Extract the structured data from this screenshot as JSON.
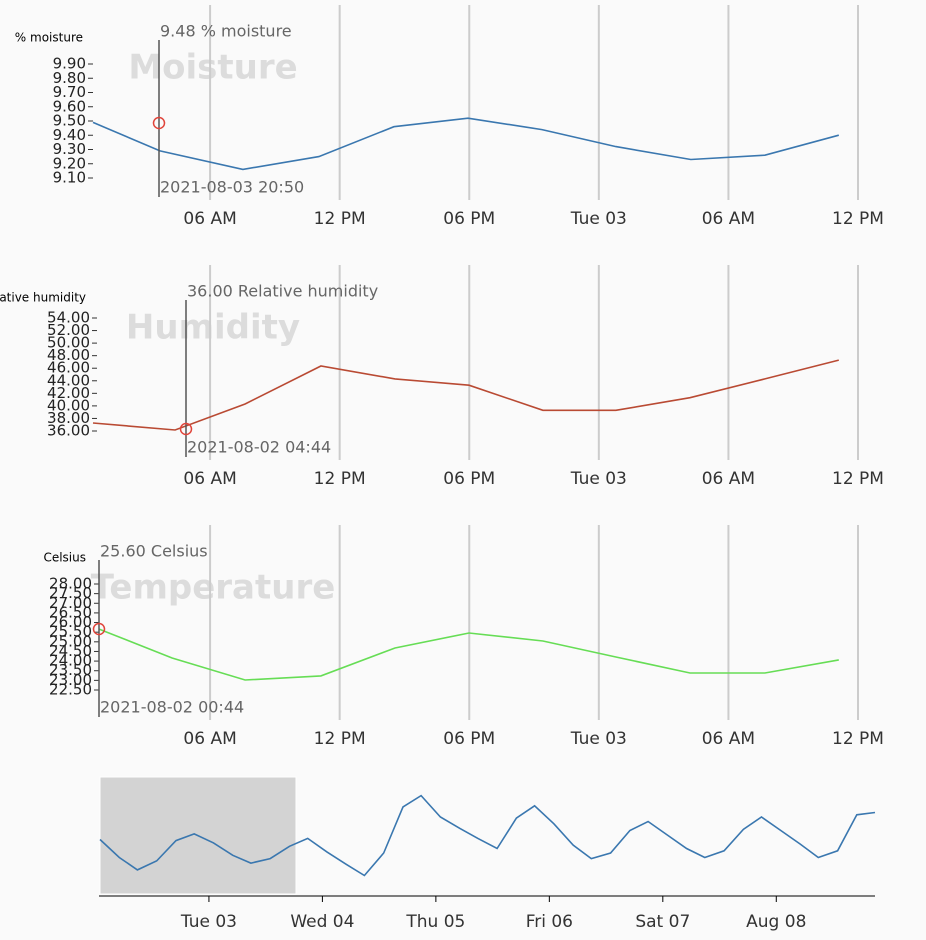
{
  "chart_data": [
    {
      "type": "line",
      "title": "Moisture",
      "y_label": "% moisture",
      "color": "#3a77af",
      "x": [
        0.58,
        3.68,
        7.52,
        11.04,
        14.51,
        17.94,
        21.37,
        24.79,
        28.26,
        31.69,
        35.11
      ],
      "values": [
        9.49,
        9.29,
        9.16,
        9.25,
        9.46,
        9.52,
        9.44,
        9.32,
        9.23,
        9.26,
        9.4
      ],
      "xlim": [
        0,
        36
      ],
      "xticks": [
        {
          "value": 6,
          "label": "06 AM"
        },
        {
          "value": 12,
          "label": "12 PM"
        },
        {
          "value": 18,
          "label": "06 PM"
        },
        {
          "value": 24,
          "label": "Tue 03"
        },
        {
          "value": 30,
          "label": "06 AM"
        },
        {
          "value": 36,
          "label": "12 PM"
        }
      ],
      "ylim": [
        9.1,
        9.9
      ],
      "yticks": [
        {
          "value": 9.1,
          "label": "9.10"
        },
        {
          "value": 9.2,
          "label": "9.20"
        },
        {
          "value": 9.3,
          "label": "9.30"
        },
        {
          "value": 9.4,
          "label": "9.40"
        },
        {
          "value": 9.5,
          "label": "9.50"
        },
        {
          "value": 9.6,
          "label": "9.60"
        },
        {
          "value": 9.7,
          "label": "9.70"
        },
        {
          "value": 9.8,
          "label": "9.80"
        },
        {
          "value": 9.9,
          "label": "9.90"
        }
      ],
      "grid": true,
      "tooltip": {
        "text": "9.48 % moisture",
        "time": "2021-08-03 20:50"
      }
    },
    {
      "type": "line",
      "title": "Humidity",
      "y_label": "Relative humidity",
      "color": "#b94a33",
      "x": [
        0.58,
        4.38,
        7.62,
        11.13,
        14.56,
        17.99,
        21.41,
        24.79,
        28.22,
        31.69,
        35.11
      ],
      "values": [
        37.27,
        36.16,
        40.3,
        46.35,
        44.3,
        43.3,
        39.3,
        39.3,
        41.3,
        44.3,
        47.3
      ],
      "xlim": [
        0,
        36
      ],
      "xticks": [
        {
          "value": 6,
          "label": "06 AM"
        },
        {
          "value": 12,
          "label": "12 PM"
        },
        {
          "value": 18,
          "label": "06 PM"
        },
        {
          "value": 24,
          "label": "Tue 03"
        },
        {
          "value": 30,
          "label": "06 AM"
        },
        {
          "value": 36,
          "label": "12 PM"
        }
      ],
      "ylim": [
        36,
        54
      ],
      "yticks": [
        {
          "value": 36,
          "label": "36.00"
        },
        {
          "value": 38,
          "label": "38.00"
        },
        {
          "value": 40,
          "label": "40.00"
        },
        {
          "value": 42,
          "label": "42.00"
        },
        {
          "value": 44,
          "label": "44.00"
        },
        {
          "value": 46,
          "label": "46.00"
        },
        {
          "value": 48,
          "label": "48.00"
        },
        {
          "value": 50,
          "label": "50.00"
        },
        {
          "value": 52,
          "label": "52.00"
        },
        {
          "value": 54,
          "label": "54.00"
        }
      ],
      "grid": true,
      "tooltip": {
        "text": "36.00 Relative humidity",
        "time": "2021-08-02 04:44"
      }
    },
    {
      "type": "line",
      "title": "Temperature",
      "y_label": "Celsius",
      "color": "#66dd55",
      "x": [
        0.86,
        4.24,
        7.62,
        11.13,
        14.56,
        17.99,
        21.41,
        24.79,
        28.22,
        31.69,
        35.11
      ],
      "values": [
        25.66,
        24.16,
        23.02,
        23.23,
        24.68,
        25.46,
        25.04,
        24.21,
        23.38,
        23.38,
        24.06
      ],
      "xlim": [
        0,
        36
      ],
      "xticks": [
        {
          "value": 6,
          "label": "06 AM"
        },
        {
          "value": 12,
          "label": "12 PM"
        },
        {
          "value": 18,
          "label": "06 PM"
        },
        {
          "value": 24,
          "label": "Tue 03"
        },
        {
          "value": 30,
          "label": "06 AM"
        },
        {
          "value": 36,
          "label": "12 PM"
        }
      ],
      "ylim": [
        22.5,
        28
      ],
      "yticks": [
        {
          "value": 22.5,
          "label": "22.50"
        },
        {
          "value": 23,
          "label": "23.00"
        },
        {
          "value": 23.5,
          "label": "23.50"
        },
        {
          "value": 24,
          "label": "24.00"
        },
        {
          "value": 24.5,
          "label": "24.50"
        },
        {
          "value": 25,
          "label": "25.00"
        },
        {
          "value": 25.5,
          "label": "25.50"
        },
        {
          "value": 26,
          "label": "26.00"
        },
        {
          "value": 26.5,
          "label": "26.50"
        },
        {
          "value": 27,
          "label": "27.00"
        },
        {
          "value": 27.5,
          "label": "27.50"
        },
        {
          "value": 28,
          "label": "28.00"
        }
      ],
      "grid": true,
      "tooltip": {
        "text": "25.60 Celsius",
        "time": "2021-08-02 00:44"
      }
    },
    {
      "type": "overview",
      "color": "#3a77af",
      "x": [
        2.04,
        2.21,
        2.37,
        2.54,
        2.71,
        2.87,
        3.04,
        3.21,
        3.37,
        3.54,
        3.71,
        3.87,
        4.04,
        4.21,
        4.37,
        4.54,
        4.71,
        4.87,
        5.04,
        5.21,
        5.37,
        5.54,
        5.71,
        5.87,
        6.04,
        6.21,
        6.37,
        6.54,
        6.71,
        6.87,
        7.04,
        7.21,
        7.37,
        7.54,
        7.71,
        7.87,
        8.04,
        8.21,
        8.37,
        8.54,
        8.71,
        8.87
      ],
      "values": [
        9.46,
        9.3,
        9.19,
        9.27,
        9.45,
        9.51,
        9.43,
        9.32,
        9.25,
        9.29,
        9.4,
        9.47,
        9.35,
        9.24,
        9.14,
        9.34,
        9.75,
        9.85,
        9.66,
        9.56,
        9.47,
        9.38,
        9.65,
        9.76,
        9.6,
        9.41,
        9.29,
        9.34,
        9.54,
        9.62,
        9.5,
        9.38,
        9.3,
        9.36,
        9.55,
        9.66,
        9.54,
        9.42,
        9.3,
        9.36,
        9.68,
        9.7
      ],
      "xlim": [
        2.04,
        8.87
      ],
      "xticks": [
        {
          "value": 3,
          "label": "Tue 03"
        },
        {
          "value": 4,
          "label": "Wed 04"
        },
        {
          "value": 5,
          "label": "Thu 05"
        },
        {
          "value": 6,
          "label": "Fri 06"
        },
        {
          "value": 7,
          "label": "Sat 07"
        },
        {
          "value": 8,
          "label": "Aug 08"
        }
      ],
      "ylim": [
        9.1,
        9.9
      ]
    }
  ]
}
